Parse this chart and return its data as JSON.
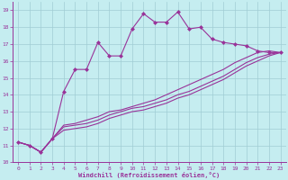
{
  "xlabel": "Windchill (Refroidissement éolien,°C)",
  "background_color": "#c5edf0",
  "grid_color": "#a0cdd4",
  "line_color": "#993399",
  "xlim": [
    -0.5,
    23.5
  ],
  "ylim": [
    10,
    19.5
  ],
  "xticks": [
    0,
    1,
    2,
    3,
    4,
    5,
    6,
    7,
    8,
    9,
    10,
    11,
    12,
    13,
    14,
    15,
    16,
    17,
    18,
    19,
    20,
    21,
    22,
    23
  ],
  "yticks": [
    10,
    11,
    12,
    13,
    14,
    15,
    16,
    17,
    18,
    19
  ],
  "curve1_x": [
    0,
    1,
    2,
    3,
    4,
    5,
    6,
    7,
    8,
    9,
    10,
    11,
    12,
    13,
    14,
    15,
    16,
    17,
    18,
    19,
    20,
    21,
    22,
    23
  ],
  "curve1_y": [
    11.2,
    11.0,
    10.6,
    11.4,
    14.2,
    15.5,
    15.5,
    17.1,
    16.3,
    16.3,
    17.9,
    18.8,
    18.3,
    18.3,
    18.9,
    17.9,
    18.0,
    17.3,
    17.1,
    17.0,
    16.9,
    16.6,
    16.5,
    16.5
  ],
  "curve2_x": [
    0,
    1,
    2,
    3,
    4,
    5,
    6,
    7,
    8,
    9,
    10,
    11,
    12,
    13,
    14,
    15,
    16,
    17,
    18,
    19,
    20,
    21,
    22,
    23
  ],
  "curve2_y": [
    11.2,
    11.0,
    10.6,
    11.4,
    12.2,
    12.3,
    12.5,
    12.7,
    13.0,
    13.1,
    13.3,
    13.5,
    13.7,
    14.0,
    14.3,
    14.6,
    14.9,
    15.2,
    15.5,
    15.9,
    16.2,
    16.5,
    16.6,
    16.5
  ],
  "curve3_x": [
    0,
    1,
    2,
    3,
    4,
    5,
    6,
    7,
    8,
    9,
    10,
    11,
    12,
    13,
    14,
    15,
    16,
    17,
    18,
    19,
    20,
    21,
    22,
    23
  ],
  "curve3_y": [
    11.2,
    11.0,
    10.6,
    11.4,
    12.1,
    12.2,
    12.3,
    12.5,
    12.8,
    13.0,
    13.2,
    13.3,
    13.5,
    13.7,
    14.0,
    14.2,
    14.5,
    14.8,
    15.1,
    15.5,
    15.9,
    16.2,
    16.4,
    16.5
  ],
  "curve4_x": [
    0,
    1,
    2,
    3,
    4,
    5,
    6,
    7,
    8,
    9,
    10,
    11,
    12,
    13,
    14,
    15,
    16,
    17,
    18,
    19,
    20,
    21,
    22,
    23
  ],
  "curve4_y": [
    11.2,
    11.0,
    10.6,
    11.4,
    11.9,
    12.0,
    12.1,
    12.3,
    12.6,
    12.8,
    13.0,
    13.1,
    13.3,
    13.5,
    13.8,
    14.0,
    14.3,
    14.6,
    14.9,
    15.3,
    15.7,
    16.0,
    16.3,
    16.5
  ]
}
